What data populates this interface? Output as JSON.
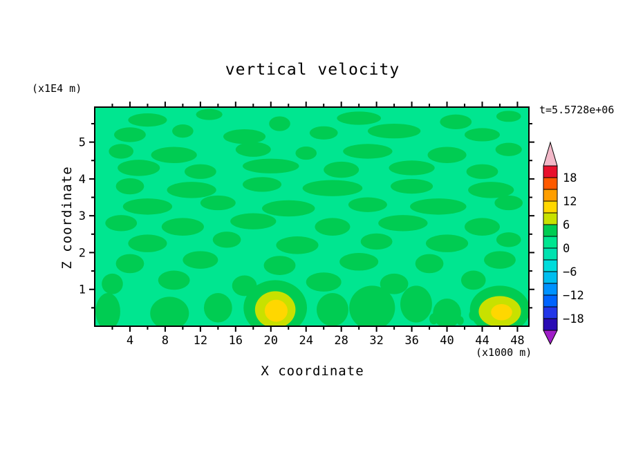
{
  "title": "vertical velocity",
  "annotations": {
    "time_label": "t=5.5728e+06",
    "y_unit_label": "(x1E4 m)",
    "x_unit_label": "(x1000 m)"
  },
  "axes": {
    "x_label": "X coordinate",
    "y_label": "Z coordinate"
  },
  "chart_data": {
    "type": "heatmap",
    "subtype": "filled-contour",
    "title": "vertical velocity",
    "xlabel": "X coordinate",
    "ylabel": "Z coordinate",
    "x_units": "(x1000 m)",
    "y_units": "(x1E4 m)",
    "time_annotation": "t=5.5728e+06",
    "xlim": [
      0,
      49.3
    ],
    "ylim": [
      0,
      5.95
    ],
    "x_ticks": [
      4,
      8,
      12,
      16,
      20,
      24,
      28,
      32,
      36,
      40,
      44,
      48
    ],
    "x_minor_step": 2,
    "y_ticks": [
      1,
      2,
      3,
      4,
      5
    ],
    "y_minor_step": 0.5,
    "grid": false,
    "legend_position": "right-colorbar",
    "colorbar": {
      "levels_min": -21,
      "levels_max": 21,
      "step": 3,
      "ticks": [
        {
          "value": 18,
          "label": "18"
        },
        {
          "value": 12,
          "label": "12"
        },
        {
          "value": 6,
          "label": "6"
        },
        {
          "value": 0,
          "label": "0"
        },
        {
          "value": -6,
          "label": "−6"
        },
        {
          "value": -12,
          "label": "−12"
        },
        {
          "value": -18,
          "label": "−18"
        }
      ],
      "segment_colors_top_to_bottom": [
        "#E8112D",
        "#FF5A00",
        "#FF9E00",
        "#FFD700",
        "#C8E100",
        "#00CC52",
        "#00E690",
        "#00E2B0",
        "#00DCDC",
        "#00BEF0",
        "#0092FF",
        "#0064FF",
        "#2337E8",
        "#2A0CB4"
      ],
      "over_color": "#F2B8C8",
      "under_color": "#A01EC8"
    },
    "field_description": "mostly near-zero vertical velocity (spring green 0..3 band) with elongated horizontal streaks in the 3..6 band and small positive maxima (6..12, yellow) near the lower boundary around x=20.5 and x=46",
    "field_blobs_format": "x, z, rx, rz, level(optional, default 4)",
    "field_blobs": [
      [
        6,
        5.6,
        2.2,
        0.18
      ],
      [
        13,
        5.75,
        1.5,
        0.15
      ],
      [
        21,
        5.5,
        1.2,
        0.2
      ],
      [
        30,
        5.65,
        2.5,
        0.18
      ],
      [
        41,
        5.55,
        1.8,
        0.2
      ],
      [
        47,
        5.7,
        1.4,
        0.15
      ],
      [
        4,
        5.2,
        1.8,
        0.2
      ],
      [
        10,
        5.3,
        1.2,
        0.18
      ],
      [
        17,
        5.15,
        2.4,
        0.2
      ],
      [
        26,
        5.25,
        1.6,
        0.18
      ],
      [
        34,
        5.3,
        3.0,
        0.2
      ],
      [
        44,
        5.2,
        2.0,
        0.18
      ],
      [
        3,
        4.75,
        1.4,
        0.2
      ],
      [
        9,
        4.65,
        2.6,
        0.22
      ],
      [
        18,
        4.8,
        2.0,
        0.2
      ],
      [
        24,
        4.7,
        1.2,
        0.18
      ],
      [
        31,
        4.75,
        2.8,
        0.2
      ],
      [
        40,
        4.65,
        2.2,
        0.22
      ],
      [
        47,
        4.8,
        1.5,
        0.18
      ],
      [
        5,
        4.3,
        2.4,
        0.22
      ],
      [
        12,
        4.2,
        1.8,
        0.2
      ],
      [
        20,
        4.35,
        3.2,
        0.2
      ],
      [
        28,
        4.25,
        2.0,
        0.22
      ],
      [
        36,
        4.3,
        2.6,
        0.2
      ],
      [
        44,
        4.2,
        1.8,
        0.2
      ],
      [
        4,
        3.8,
        1.6,
        0.22
      ],
      [
        11,
        3.7,
        2.8,
        0.22
      ],
      [
        19,
        3.85,
        2.2,
        0.2
      ],
      [
        27,
        3.75,
        3.4,
        0.22
      ],
      [
        36,
        3.8,
        2.4,
        0.2
      ],
      [
        45,
        3.7,
        2.6,
        0.22
      ],
      [
        6,
        3.25,
        2.8,
        0.22
      ],
      [
        14,
        3.35,
        2.0,
        0.2
      ],
      [
        22,
        3.2,
        3.0,
        0.22
      ],
      [
        31,
        3.3,
        2.2,
        0.2
      ],
      [
        39,
        3.25,
        3.2,
        0.22
      ],
      [
        47,
        3.35,
        1.6,
        0.2
      ],
      [
        3,
        2.8,
        1.8,
        0.22
      ],
      [
        10,
        2.7,
        2.4,
        0.24
      ],
      [
        18,
        2.85,
        2.6,
        0.22
      ],
      [
        27,
        2.7,
        2.0,
        0.24
      ],
      [
        35,
        2.8,
        2.8,
        0.22
      ],
      [
        44,
        2.7,
        2.0,
        0.24
      ],
      [
        6,
        2.25,
        2.2,
        0.24
      ],
      [
        15,
        2.35,
        1.6,
        0.22
      ],
      [
        23,
        2.2,
        2.4,
        0.24
      ],
      [
        32,
        2.3,
        1.8,
        0.22
      ],
      [
        40,
        2.25,
        2.4,
        0.24
      ],
      [
        47,
        2.35,
        1.4,
        0.2
      ],
      [
        4,
        1.7,
        1.6,
        0.26
      ],
      [
        12,
        1.8,
        2.0,
        0.24
      ],
      [
        21,
        1.65,
        1.8,
        0.26
      ],
      [
        30,
        1.75,
        2.2,
        0.24
      ],
      [
        38,
        1.7,
        1.6,
        0.26
      ],
      [
        46,
        1.8,
        1.8,
        0.24
      ],
      [
        2,
        1.15,
        1.2,
        0.28
      ],
      [
        9,
        1.25,
        1.8,
        0.26
      ],
      [
        17,
        1.1,
        1.4,
        0.28
      ],
      [
        26,
        1.2,
        2.0,
        0.26
      ],
      [
        34,
        1.15,
        1.6,
        0.28
      ],
      [
        43,
        1.25,
        1.4,
        0.26
      ],
      [
        1.5,
        0.4,
        1.4,
        0.5
      ],
      [
        8.5,
        0.35,
        2.2,
        0.45
      ],
      [
        14,
        0.5,
        1.6,
        0.4
      ],
      [
        20.5,
        0.5,
        3.6,
        0.75
      ],
      [
        20.5,
        0.45,
        2.3,
        0.5,
        7.5
      ],
      [
        20.6,
        0.42,
        1.3,
        0.3,
        10
      ],
      [
        27,
        0.45,
        1.8,
        0.45
      ],
      [
        31.5,
        0.5,
        2.6,
        0.6
      ],
      [
        36.5,
        0.6,
        1.8,
        0.5
      ],
      [
        40,
        0.35,
        1.6,
        0.4
      ],
      [
        46,
        0.45,
        3.4,
        0.65
      ],
      [
        46,
        0.4,
        2.4,
        0.42,
        7.5
      ],
      [
        46.2,
        0.38,
        1.2,
        0.22,
        10
      ],
      [
        38.5,
        0.2,
        0.5,
        0.15
      ],
      [
        41.5,
        0.15,
        0.4,
        0.12
      ],
      [
        43,
        0.3,
        0.5,
        0.15
      ]
    ]
  }
}
